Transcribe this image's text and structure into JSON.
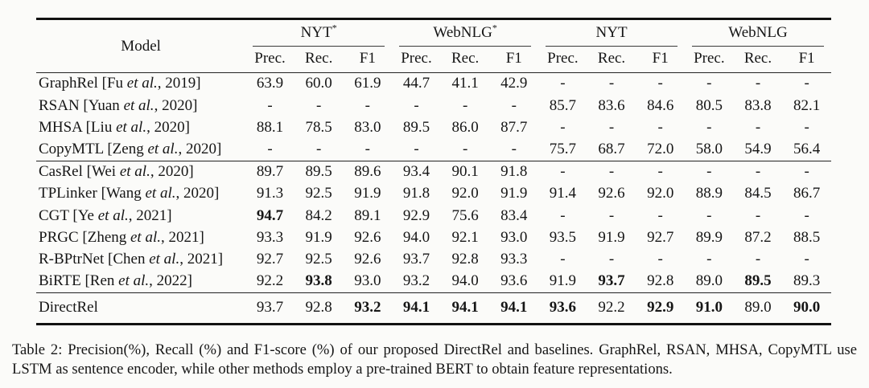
{
  "table": {
    "model_header": "Model",
    "groups": [
      {
        "label": "NYT",
        "sup": "*"
      },
      {
        "label": "WebNLG",
        "sup": "*"
      },
      {
        "label": "NYT",
        "sup": ""
      },
      {
        "label": "WebNLG",
        "sup": ""
      }
    ],
    "subheaders": [
      "Prec.",
      "Rec.",
      "F1"
    ],
    "row_groups": [
      {
        "rows": [
          {
            "model": "GraphRel [Fu et al., 2019]",
            "values": [
              "63.9",
              "60.0",
              "61.9",
              "44.7",
              "41.1",
              "42.9",
              "-",
              "-",
              "-",
              "-",
              "-",
              "-"
            ],
            "bold": []
          },
          {
            "model": "RSAN [Yuan et al., 2020]",
            "values": [
              "-",
              "-",
              "-",
              "-",
              "-",
              "-",
              "85.7",
              "83.6",
              "84.6",
              "80.5",
              "83.8",
              "82.1"
            ],
            "bold": []
          },
          {
            "model": "MHSA [Liu et al., 2020]",
            "values": [
              "88.1",
              "78.5",
              "83.0",
              "89.5",
              "86.0",
              "87.7",
              "-",
              "-",
              "-",
              "-",
              "-",
              "-"
            ],
            "bold": []
          },
          {
            "model": "CopyMTL [Zeng et al., 2020]",
            "values": [
              "-",
              "-",
              "-",
              "-",
              "-",
              "-",
              "75.7",
              "68.7",
              "72.0",
              "58.0",
              "54.9",
              "56.4"
            ],
            "bold": []
          }
        ]
      },
      {
        "rows": [
          {
            "model": "CasRel [Wei et al., 2020]",
            "values": [
              "89.7",
              "89.5",
              "89.6",
              "93.4",
              "90.1",
              "91.8",
              "-",
              "-",
              "-",
              "-",
              "-",
              "-"
            ],
            "bold": []
          },
          {
            "model": "TPLinker [Wang et al., 2020]",
            "values": [
              "91.3",
              "92.5",
              "91.9",
              "91.8",
              "92.0",
              "91.9",
              "91.4",
              "92.6",
              "92.0",
              "88.9",
              "84.5",
              "86.7"
            ],
            "bold": []
          },
          {
            "model": "CGT [Ye et al., 2021]",
            "values": [
              "94.7",
              "84.2",
              "89.1",
              "92.9",
              "75.6",
              "83.4",
              "-",
              "-",
              "-",
              "-",
              "-",
              "-"
            ],
            "bold": [
              0
            ]
          },
          {
            "model": "PRGC [Zheng et al., 2021]",
            "values": [
              "93.3",
              "91.9",
              "92.6",
              "94.0",
              "92.1",
              "93.0",
              "93.5",
              "91.9",
              "92.7",
              "89.9",
              "87.2",
              "88.5"
            ],
            "bold": []
          },
          {
            "model": "R-BPtrNet [Chen et al., 2021]",
            "values": [
              "92.7",
              "92.5",
              "92.6",
              "93.7",
              "92.8",
              "93.3",
              "-",
              "-",
              "-",
              "-",
              "-",
              "-"
            ],
            "bold": []
          },
          {
            "model": "BiRTE [Ren et al., 2022]",
            "values": [
              "92.2",
              "93.8",
              "93.0",
              "93.2",
              "94.0",
              "93.6",
              "91.9",
              "93.7",
              "92.8",
              "89.0",
              "89.5",
              "89.3"
            ],
            "bold": [
              1,
              7,
              10
            ]
          }
        ]
      },
      {
        "rows": [
          {
            "model": "DirectRel",
            "values": [
              "93.7",
              "92.8",
              "93.2",
              "94.1",
              "94.1",
              "94.1",
              "93.6",
              "92.2",
              "92.9",
              "91.0",
              "89.0",
              "90.0"
            ],
            "bold": [
              2,
              3,
              4,
              5,
              6,
              8,
              9,
              11
            ]
          }
        ]
      }
    ]
  },
  "caption": "Table 2: Precision(%), Recall (%) and F1-score (%) of our proposed DirectRel and baselines. GraphRel, RSAN, MHSA, CopyMTL use LSTM as sentence encoder, while other methods employ a pre-trained BERT to obtain feature representations."
}
